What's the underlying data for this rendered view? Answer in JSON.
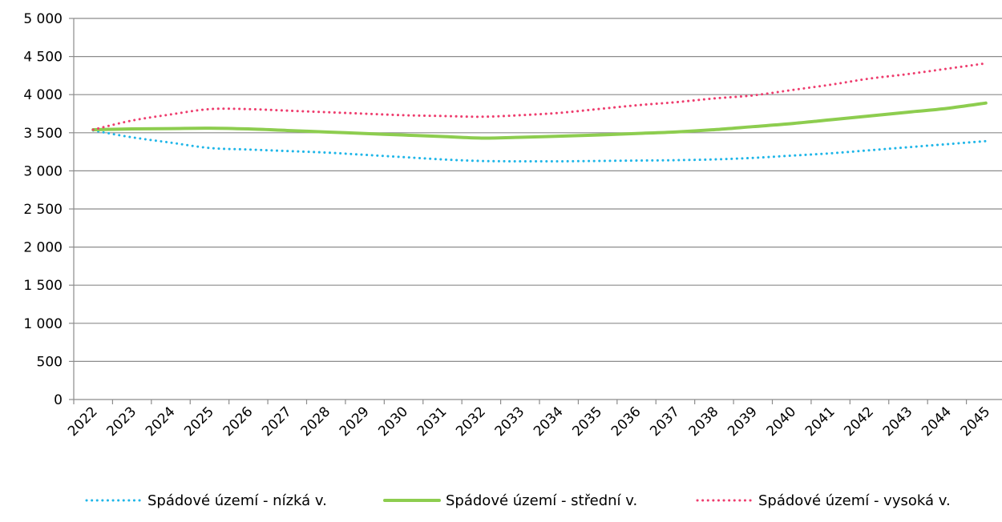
{
  "chart_data": {
    "type": "line",
    "title": "",
    "xlabel": "",
    "ylabel": "",
    "ylim": [
      0,
      5000
    ],
    "yticks": [
      0,
      500,
      1000,
      1500,
      2000,
      2500,
      3000,
      3500,
      4000,
      4500,
      5000
    ],
    "ytick_labels": [
      "0",
      "500",
      "1 000",
      "1 500",
      "2 000",
      "2 500",
      "3 000",
      "3 500",
      "4 000",
      "4 500",
      "5 000"
    ],
    "categories": [
      "2022",
      "2023",
      "2024",
      "2025",
      "2026",
      "2027",
      "2028",
      "2029",
      "2030",
      "2031",
      "2032",
      "2033",
      "2034",
      "2035",
      "2036",
      "2037",
      "2038",
      "2039",
      "2040",
      "2041",
      "2042",
      "2043",
      "2044",
      "2045"
    ],
    "grid": true,
    "legend_position": "bottom",
    "series": [
      {
        "name": "Spádové území - nízká v.",
        "color": "#1fb6e8",
        "style": "dotted",
        "values": [
          3530,
          3440,
          3370,
          3300,
          3280,
          3260,
          3240,
          3210,
          3180,
          3150,
          3130,
          3125,
          3125,
          3130,
          3135,
          3140,
          3150,
          3170,
          3200,
          3230,
          3270,
          3310,
          3350,
          3390
        ]
      },
      {
        "name": "Spádové území - střední v.",
        "color": "#8dcd4f",
        "style": "solid",
        "values": [
          3540,
          3550,
          3555,
          3560,
          3550,
          3530,
          3510,
          3490,
          3470,
          3450,
          3430,
          3440,
          3455,
          3470,
          3490,
          3510,
          3540,
          3580,
          3620,
          3670,
          3720,
          3770,
          3820,
          3890
        ]
      },
      {
        "name": "Spádové území - vysoká v.",
        "color": "#ee3d6e",
        "style": "dotted",
        "values": [
          3540,
          3660,
          3740,
          3810,
          3810,
          3790,
          3770,
          3750,
          3730,
          3720,
          3710,
          3730,
          3760,
          3810,
          3860,
          3900,
          3950,
          3990,
          4060,
          4130,
          4210,
          4270,
          4340,
          4410
        ]
      }
    ]
  }
}
